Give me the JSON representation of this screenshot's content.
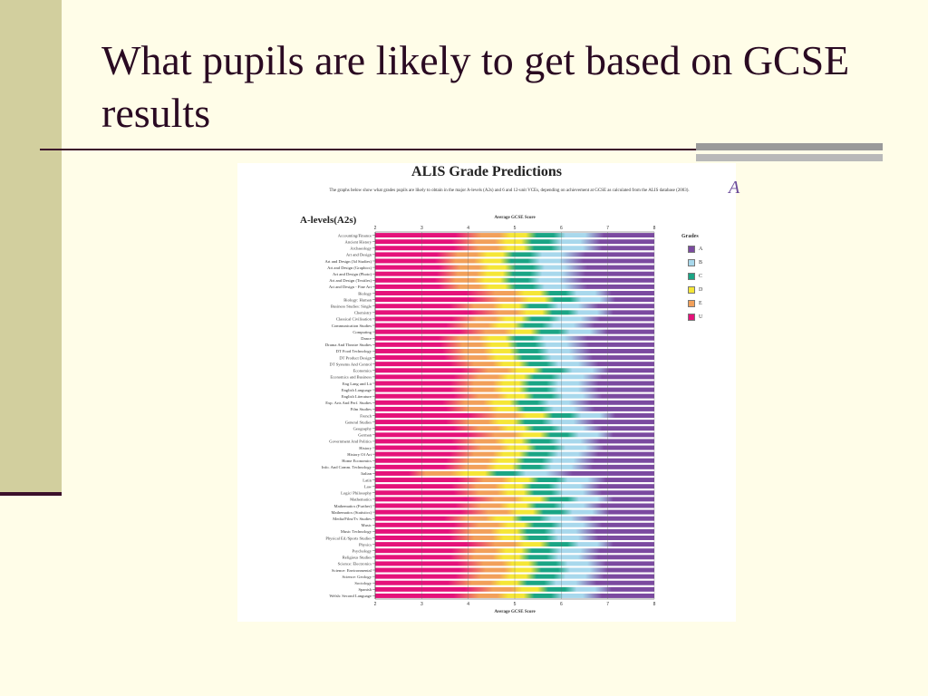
{
  "slide": {
    "title": "What pupils are likely to get based on GCSE results"
  },
  "partial_glyph": "A",
  "chart_data": {
    "type": "heatmap",
    "title": "ALIS Grade Predictions",
    "subtitle": "The graphs below show what grades pupils are likely to obtain in the major A-levels (A2s) and 6 and 12-unit VCEs, depending on achievement at GCSE as calculated from the ALIS database (2003).",
    "section": "A-levels(A2s)",
    "xlabel": "Average GCSE Score",
    "xlim": [
      2,
      8
    ],
    "xticks": [
      "2",
      "3",
      "4",
      "5",
      "6",
      "7",
      "8"
    ],
    "legend_title": "Grades",
    "grades": [
      "A",
      "B",
      "C",
      "D",
      "E",
      "U"
    ],
    "grade_colors": {
      "A": "#7b4aa0",
      "B": "#a8d8ec",
      "C": "#1aa585",
      "D": "#f5e637",
      "E": "#f2a05a",
      "U": "#e5127a"
    },
    "subjects": [
      "Accounting/Finance",
      "Ancient History",
      "Archaeology",
      "Art and Design",
      "Art and Design (3d Studies)",
      "Art and Design (Graphics)",
      "Art and Design (Photo)",
      "Art and Design (Textiles)",
      "Art and Design - Fine Art",
      "Biology",
      "Biology: Human",
      "Business Studies: Single",
      "Chemistry",
      "Classical Civilisation",
      "Communication Studies",
      "Computing",
      "Dance",
      "Drama And Theatre Studies",
      "DT Food Technology",
      "DT Product Design",
      "DT Systems And Control",
      "Economics",
      "Economics and Business",
      "Eng Lang and Lit",
      "English Language",
      "English Literature",
      "Exp. Arts And Perf. Studies",
      "Film Studies",
      "French",
      "General Studies",
      "Geography",
      "German",
      "Government And Politics",
      "History",
      "History Of Art",
      "Home Economics",
      "Info. And Comm. Technology",
      "Italian",
      "Latin",
      "Law",
      "Logic/ Philosophy",
      "Mathematics",
      "Mathematics (Further)",
      "Mathematics (Statistics)",
      "Media/Film/Tv Studies",
      "Music",
      "Music Technology",
      "Physical Ed./Sports Studies",
      "Physics",
      "Psychology",
      "Religious Studies",
      "Science: Electronics",
      "Science: Environmental",
      "Science: Geology",
      "Sociology",
      "Spanish",
      "Welsh: Second Language"
    ],
    "grade_boundaries_note_units": "Average GCSE Score",
    "boundaries": [
      [
        4.15,
        4.8,
        5.35,
        5.95,
        6.65
      ],
      [
        4.05,
        4.7,
        5.25,
        5.85,
        6.55
      ],
      [
        4.1,
        4.75,
        5.3,
        5.9,
        6.6
      ],
      [
        3.65,
        4.3,
        4.85,
        5.45,
        6.15
      ],
      [
        3.6,
        4.25,
        4.8,
        5.4,
        6.1
      ],
      [
        3.7,
        4.35,
        4.9,
        5.5,
        6.2
      ],
      [
        3.65,
        4.3,
        4.85,
        5.45,
        6.15
      ],
      [
        3.6,
        4.25,
        4.8,
        5.4,
        6.1
      ],
      [
        3.7,
        4.35,
        4.9,
        5.5,
        6.2
      ],
      [
        4.45,
        5.1,
        5.65,
        6.2,
        6.85
      ],
      [
        4.55,
        5.2,
        5.75,
        6.3,
        6.95
      ],
      [
        4.0,
        4.65,
        5.2,
        5.8,
        6.5
      ],
      [
        4.55,
        5.15,
        5.7,
        6.25,
        6.9
      ],
      [
        4.05,
        4.7,
        5.25,
        5.85,
        6.55
      ],
      [
        3.9,
        4.55,
        5.1,
        5.7,
        6.4
      ],
      [
        4.25,
        4.9,
        5.45,
        6.05,
        6.75
      ],
      [
        3.7,
        4.35,
        4.9,
        5.5,
        6.2
      ],
      [
        3.75,
        4.4,
        4.95,
        5.55,
        6.25
      ],
      [
        3.8,
        4.45,
        5.0,
        5.6,
        6.3
      ],
      [
        3.85,
        4.5,
        5.05,
        5.65,
        6.35
      ],
      [
        4.0,
        4.65,
        5.2,
        5.8,
        6.5
      ],
      [
        4.3,
        4.95,
        5.5,
        6.1,
        6.8
      ],
      [
        4.1,
        4.75,
        5.3,
        5.9,
        6.6
      ],
      [
        4.0,
        4.65,
        5.2,
        5.8,
        6.5
      ],
      [
        4.0,
        4.65,
        5.2,
        5.8,
        6.5
      ],
      [
        4.1,
        4.75,
        5.3,
        5.9,
        6.6
      ],
      [
        3.8,
        4.45,
        5.0,
        5.6,
        6.3
      ],
      [
        3.9,
        4.55,
        5.1,
        5.7,
        6.4
      ],
      [
        4.5,
        5.15,
        5.7,
        6.3,
        6.95
      ],
      [
        3.9,
        4.55,
        5.1,
        5.7,
        6.4
      ],
      [
        4.1,
        4.75,
        5.3,
        5.9,
        6.6
      ],
      [
        4.45,
        5.1,
        5.65,
        6.25,
        6.9
      ],
      [
        4.05,
        4.7,
        5.25,
        5.85,
        6.55
      ],
      [
        4.15,
        4.8,
        5.35,
        5.95,
        6.65
      ],
      [
        4.0,
        4.65,
        5.2,
        5.8,
        6.5
      ],
      [
        3.9,
        4.55,
        5.1,
        5.7,
        6.4
      ],
      [
        3.85,
        4.5,
        5.05,
        5.65,
        6.35
      ],
      [
        2.9,
        3.8,
        4.5,
        5.1,
        5.8
      ],
      [
        4.2,
        4.85,
        5.4,
        6.0,
        6.7
      ],
      [
        4.05,
        4.7,
        5.25,
        5.85,
        6.55
      ],
      [
        4.1,
        4.75,
        5.3,
        5.9,
        6.6
      ],
      [
        4.45,
        5.1,
        5.65,
        6.25,
        6.9
      ],
      [
        4.15,
        4.8,
        5.35,
        5.95,
        6.6
      ],
      [
        4.3,
        4.95,
        5.5,
        6.1,
        6.8
      ],
      [
        3.85,
        4.5,
        5.05,
        5.65,
        6.35
      ],
      [
        4.1,
        4.75,
        5.3,
        5.9,
        6.6
      ],
      [
        3.95,
        4.6,
        5.15,
        5.75,
        6.45
      ],
      [
        4.0,
        4.65,
        5.2,
        5.8,
        6.5
      ],
      [
        4.45,
        5.1,
        5.65,
        6.25,
        6.9
      ],
      [
        4.05,
        4.7,
        5.25,
        5.85,
        6.55
      ],
      [
        4.0,
        4.65,
        5.2,
        5.8,
        6.5
      ],
      [
        4.2,
        4.85,
        5.4,
        6.0,
        6.7
      ],
      [
        4.25,
        4.9,
        5.45,
        6.05,
        6.75
      ],
      [
        4.15,
        4.8,
        5.35,
        5.95,
        6.65
      ],
      [
        3.95,
        4.6,
        5.15,
        5.75,
        6.45
      ],
      [
        4.4,
        5.05,
        5.6,
        6.2,
        6.85
      ],
      [
        4.1,
        4.75,
        5.3,
        5.9,
        6.6
      ]
    ]
  }
}
